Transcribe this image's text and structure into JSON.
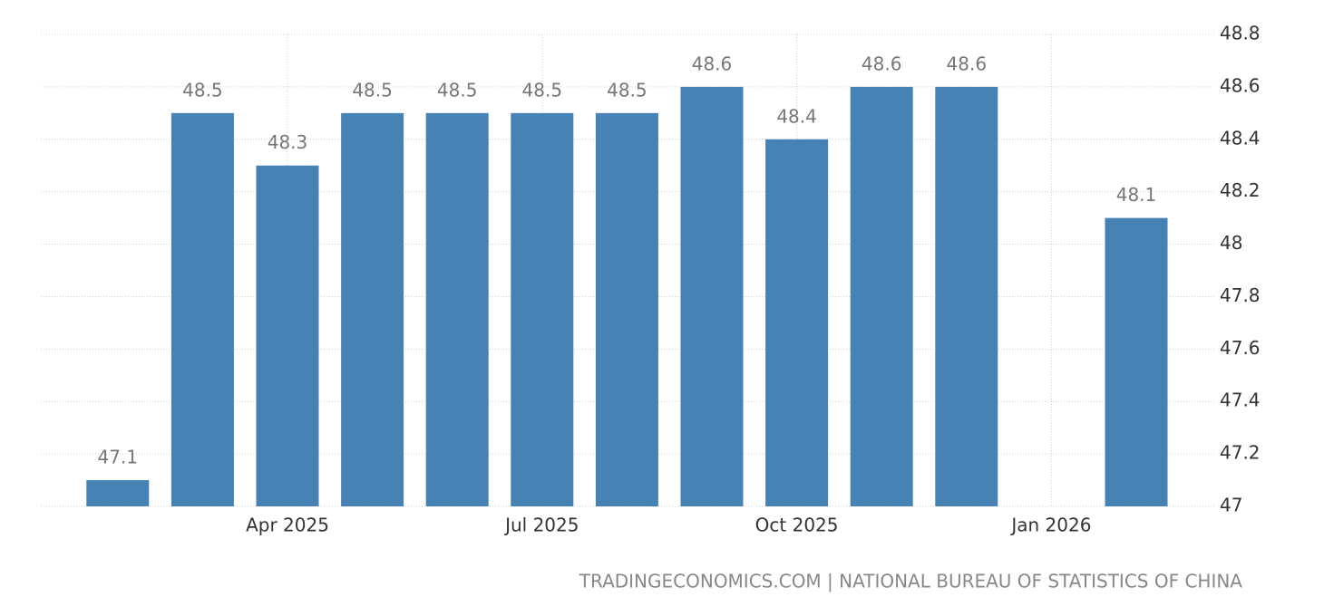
{
  "chart_data": {
    "type": "bar",
    "categories": [
      null,
      null,
      "Apr 2025",
      null,
      null,
      "Jul 2025",
      null,
      null,
      "Oct 2025",
      null,
      null,
      "Jan 2026",
      null
    ],
    "values": [
      47.1,
      48.5,
      48.3,
      48.5,
      48.5,
      48.5,
      48.5,
      48.6,
      48.4,
      48.6,
      48.6,
      null,
      48.1
    ],
    "color": "#4682b4",
    "ylim": [
      47,
      48.8
    ],
    "yticks": [
      47,
      47.2,
      47.4,
      47.6,
      47.8,
      48,
      48.2,
      48.4,
      48.6,
      48.8
    ],
    "grid": true,
    "source": "TRADINGECONOMICS.COM | NATIONAL BUREAU OF STATISTICS OF CHINA"
  }
}
